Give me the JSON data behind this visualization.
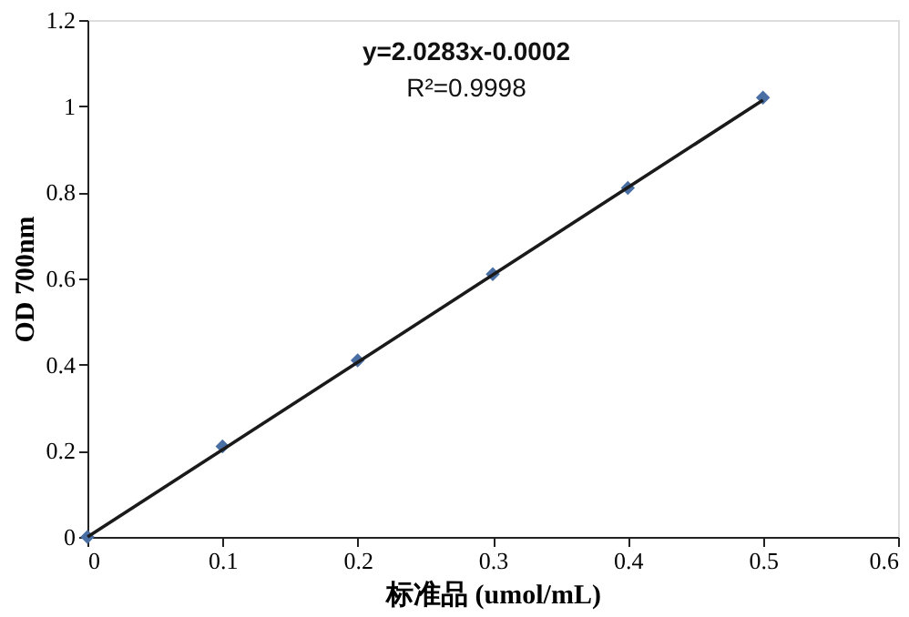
{
  "chart_data": {
    "type": "scatter",
    "xlabel": "标准品 (umol/mL)",
    "ylabel": "OD 700nm",
    "x": [
      0,
      0.1,
      0.2,
      0.3,
      0.4,
      0.5
    ],
    "series": [
      {
        "type": "scatter",
        "color": "#4a6fa5",
        "marker": "diamond",
        "values": [
          0,
          0.21,
          0.41,
          0.61,
          0.81,
          1.02
        ]
      },
      {
        "type": "line",
        "color": "#1a1a1a",
        "x": [
          0.0001,
          0.5
        ],
        "values": [
          0.0,
          1.014
        ]
      }
    ],
    "xlim": [
      0,
      0.6
    ],
    "xticks": [
      0,
      0.1,
      0.2,
      0.3,
      0.4,
      0.5,
      0.6
    ],
    "ylim": [
      0,
      1.2
    ],
    "yticks": [
      0,
      0.2,
      0.4,
      0.6,
      0.8,
      1,
      1.2
    ],
    "grid": false,
    "annotations": [
      "y=2.0283x-0.0002",
      "R²=0.9998"
    ]
  }
}
